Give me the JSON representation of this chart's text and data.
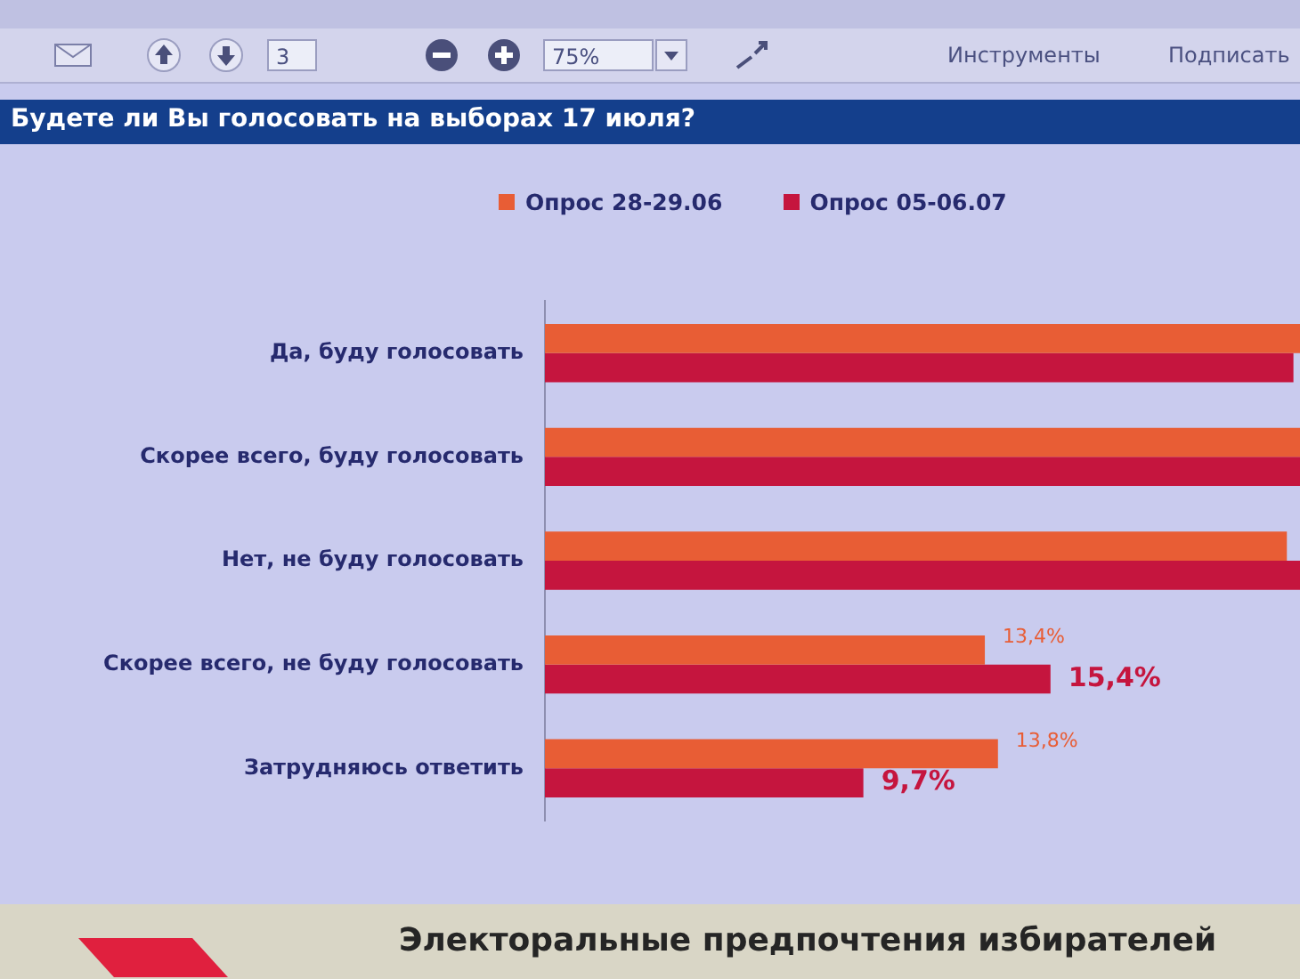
{
  "chart_data": {
    "type": "bar",
    "orientation": "horizontal",
    "title": "Будете ли Вы голосовать на выборах 17 июля?",
    "categories": [
      "Да, буду голосовать",
      "Скорее всего, буду голосовать",
      "Нет, не буду голосовать",
      "Скорее всего, не буду голосовать",
      "Затрудняюсь ответить"
    ],
    "series": [
      {
        "name": "Опрос 28-29.06",
        "color": "#e85d35",
        "values": [
          23,
          23,
          22.6,
          13.4,
          13.8
        ],
        "value_labels": [
          null,
          null,
          null,
          "13,4%",
          "13,8%"
        ]
      },
      {
        "name": "Опрос 05-06.07",
        "color": "#c5153e",
        "values": [
          22.8,
          23,
          23,
          15.4,
          9.7
        ],
        "value_labels": [
          null,
          null,
          null,
          "15,4%",
          "9,7%"
        ]
      }
    ],
    "legend": "top",
    "tick_labels": "y",
    "annotations": [
      "3",
      "75%",
      "Инструменты",
      "Подписать",
      "Электоральные предпочтения избирателей"
    ]
  }
}
